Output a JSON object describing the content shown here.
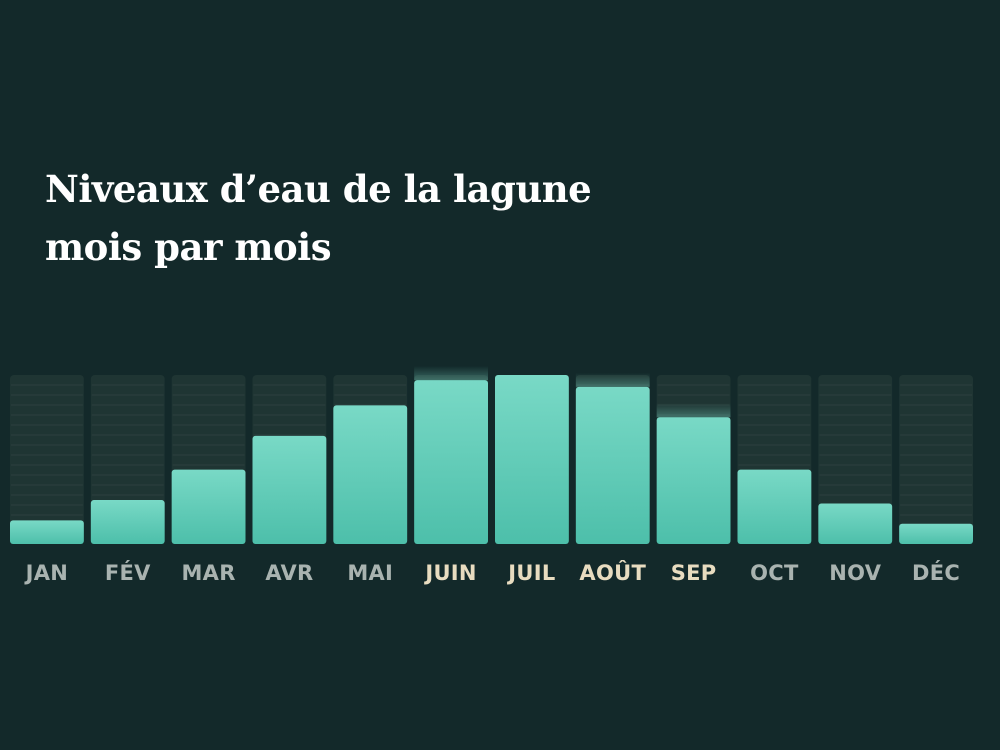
{
  "chart_data": {
    "type": "bar",
    "title": "Niveaux d’eau de la lagune mois par mois",
    "xlabel": "",
    "ylabel": "",
    "grid": true,
    "ylim": [
      0,
      100
    ],
    "categories": [
      "JAN",
      "FÉV",
      "MAR",
      "AVR",
      "MAI",
      "JUIN",
      "JUIL",
      "AOÛT",
      "SEP",
      "OCT",
      "NOV",
      "DÉC"
    ],
    "values": [
      14,
      26,
      44,
      64,
      82,
      97,
      100,
      93,
      75,
      44,
      24,
      12
    ],
    "highlighted": [
      "JUIN",
      "JUIL",
      "AOÛT",
      "SEP"
    ]
  },
  "colors": {
    "background": "#13292a",
    "track": "#1f3533",
    "bar_top": "#79d9c6",
    "bar_bottom": "#4dbfaa",
    "label": "#a9b3b0",
    "label_highlight": "#e8dcc0",
    "title": "#ffffff"
  }
}
